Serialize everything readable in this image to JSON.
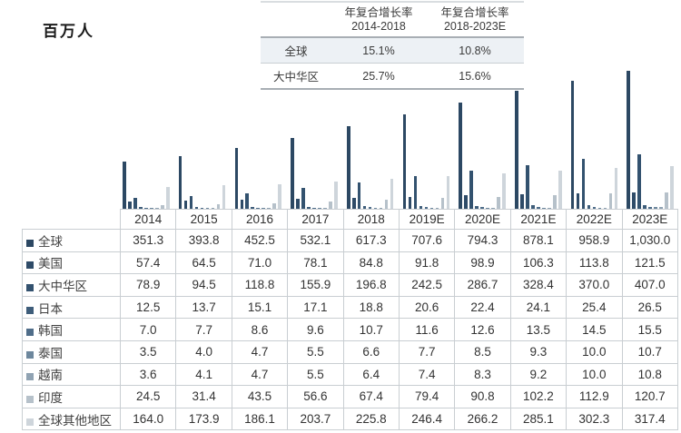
{
  "unit_label": "百万人",
  "cagr_table": {
    "headers": [
      {
        "line1": "年复合增长率",
        "line2": "2014-2018"
      },
      {
        "line1": "年复合增长率",
        "line2": "2018-2023E"
      }
    ],
    "rows": [
      {
        "label": "全球",
        "values": [
          "15.1%",
          "10.8%"
        ],
        "shaded": true
      },
      {
        "label": "大中华区",
        "values": [
          "25.7%",
          "15.6%"
        ],
        "shaded": false
      }
    ]
  },
  "chart_data": {
    "type": "bar",
    "title": "",
    "ylabel": "百万人",
    "ylim": [
      0,
      1030
    ],
    "grid": false,
    "legend_position": "table-row-labels",
    "categories": [
      "2014",
      "2015",
      "2016",
      "2017",
      "2018",
      "2019E",
      "2020E",
      "2021E",
      "2022E",
      "2023E"
    ],
    "series": [
      {
        "name": "全球",
        "color": "#2c4863",
        "values": [
          351.3,
          393.8,
          452.5,
          532.1,
          617.3,
          707.6,
          794.3,
          878.1,
          958.9,
          1030.0
        ]
      },
      {
        "name": "美国",
        "color": "#2e4b68",
        "values": [
          57.4,
          64.5,
          71.0,
          78.1,
          84.8,
          91.8,
          98.9,
          106.3,
          113.8,
          121.5
        ]
      },
      {
        "name": "大中华区",
        "color": "#33526f",
        "values": [
          78.9,
          94.5,
          118.8,
          155.9,
          196.8,
          242.5,
          286.7,
          328.4,
          370.0,
          407.0
        ]
      },
      {
        "name": "日本",
        "color": "#3e5d7a",
        "values": [
          12.5,
          13.7,
          15.1,
          17.1,
          18.8,
          20.6,
          22.4,
          24.1,
          25.4,
          26.5
        ]
      },
      {
        "name": "韩国",
        "color": "#4f6d89",
        "values": [
          7.0,
          7.7,
          8.6,
          9.6,
          10.7,
          11.6,
          12.6,
          13.5,
          14.5,
          15.5
        ]
      },
      {
        "name": "泰国",
        "color": "#6d879d",
        "values": [
          3.5,
          4.0,
          4.7,
          5.5,
          6.6,
          7.7,
          8.5,
          9.3,
          10.0,
          10.7
        ]
      },
      {
        "name": "越南",
        "color": "#90a3b3",
        "values": [
          3.6,
          4.1,
          4.7,
          5.5,
          6.4,
          7.4,
          8.3,
          9.2,
          10.0,
          10.8
        ]
      },
      {
        "name": "印度",
        "color": "#b6c1ca",
        "values": [
          24.5,
          31.4,
          43.5,
          56.6,
          67.4,
          79.4,
          90.8,
          102.2,
          112.9,
          120.7
        ]
      },
      {
        "name": "全球其他地区",
        "color": "#ced5db",
        "values": [
          164.0,
          173.9,
          186.1,
          203.7,
          225.8,
          246.4,
          266.2,
          285.1,
          302.3,
          317.4
        ]
      }
    ]
  },
  "table": {
    "header": [
      "",
      "2014",
      "2015",
      "2016",
      "2017",
      "2018",
      "2019E",
      "2020E",
      "2021E",
      "2022E",
      "2023E"
    ],
    "rows": [
      {
        "label": "全球",
        "cells": [
          "351.3",
          "393.8",
          "452.5",
          "532.1",
          "617.3",
          "707.6",
          "794.3",
          "878.1",
          "958.9",
          "1,030.0"
        ]
      },
      {
        "label": "美国",
        "cells": [
          "57.4",
          "64.5",
          "71.0",
          "78.1",
          "84.8",
          "91.8",
          "98.9",
          "106.3",
          "113.8",
          "121.5"
        ]
      },
      {
        "label": "大中华区",
        "cells": [
          "78.9",
          "94.5",
          "118.8",
          "155.9",
          "196.8",
          "242.5",
          "286.7",
          "328.4",
          "370.0",
          "407.0"
        ]
      },
      {
        "label": "日本",
        "cells": [
          "12.5",
          "13.7",
          "15.1",
          "17.1",
          "18.8",
          "20.6",
          "22.4",
          "24.1",
          "25.4",
          "26.5"
        ]
      },
      {
        "label": "韩国",
        "cells": [
          "7.0",
          "7.7",
          "8.6",
          "9.6",
          "10.7",
          "11.6",
          "12.6",
          "13.5",
          "14.5",
          "15.5"
        ]
      },
      {
        "label": "泰国",
        "cells": [
          "3.5",
          "4.0",
          "4.7",
          "5.5",
          "6.6",
          "7.7",
          "8.5",
          "9.3",
          "10.0",
          "10.7"
        ]
      },
      {
        "label": "越南",
        "cells": [
          "3.6",
          "4.1",
          "4.7",
          "5.5",
          "6.4",
          "7.4",
          "8.3",
          "9.2",
          "10.0",
          "10.8"
        ]
      },
      {
        "label": "印度",
        "cells": [
          "24.5",
          "31.4",
          "43.5",
          "56.6",
          "67.4",
          "79.4",
          "90.8",
          "102.2",
          "112.9",
          "120.7"
        ]
      },
      {
        "label": "全球其他地区",
        "cells": [
          "164.0",
          "173.9",
          "186.1",
          "203.7",
          "225.8",
          "246.4",
          "266.2",
          "285.1",
          "302.3",
          "317.4"
        ]
      }
    ]
  }
}
